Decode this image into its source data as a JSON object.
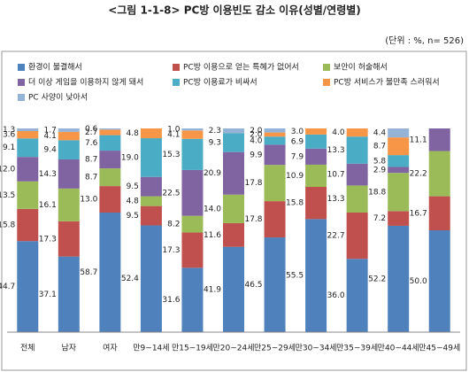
{
  "chart_data": {
    "type": "stacked_bar",
    "title": "<그림 1-1-8> PC방 이용빈도 감소 이유(성별/연령별)",
    "subtitle": "(단위 : %, n= 526)",
    "categories": [
      "전체",
      "남자",
      "여자",
      "만9~14세",
      "만15~19세",
      "만20~24세",
      "만25~29세",
      "만30~34세",
      "만35~39세",
      "만40~44세",
      "만45~49세"
    ],
    "ylim": [
      0,
      100
    ],
    "series": [
      {
        "name": "환경이 불결해서",
        "color": "#4f81bd",
        "values": [
          44.7,
          37.1,
          58.7,
          52.4,
          31.6,
          41.9,
          46.5,
          55.5,
          36.0,
          52.2,
          50.0
        ],
        "value_labels": [
          "44.7",
          "37.1",
          "58.7",
          "52.4",
          "31.6",
          "41.9",
          "46.5",
          "55.5",
          "36.0",
          "52.2",
          "50.0"
        ]
      },
      {
        "name": "PC방 이용으로 얻는 특혜가 없어서",
        "color": "#c0504d",
        "values": [
          15.8,
          17.3,
          13.0,
          9.5,
          17.3,
          11.6,
          17.8,
          15.8,
          22.7,
          7.2,
          16.7
        ],
        "value_labels": [
          "15.8",
          "17.3",
          "13.0",
          "9.5",
          "17.3",
          "11.6",
          "17.8",
          "15.8",
          "22.7",
          "7.2",
          "16.7"
        ]
      },
      {
        "name": "보안이 허술해서",
        "color": "#9bbb59",
        "values": [
          13.5,
          16.1,
          8.7,
          4.8,
          8.2,
          14.0,
          17.8,
          10.9,
          13.3,
          18.8,
          22.2
        ],
        "value_labels": [
          "13.5",
          "16.1",
          "8.7",
          "4.8",
          "8.2",
          "14.0",
          "17.8",
          "10.9",
          "13.3",
          "18.8",
          "22.2"
        ]
      },
      {
        "name": "더 이상 게임을 이용하지 않게 돼서",
        "color": "#8064a2",
        "values": [
          12.0,
          14.3,
          8.7,
          9.5,
          22.5,
          20.9,
          9.9,
          7.9,
          10.7,
          2.9,
          11.1
        ],
        "value_labels": [
          "12.0",
          "14.3",
          "8.7",
          "9.5",
          "22.5",
          "20.9",
          "9.9",
          "7.9",
          "10.7",
          "2.9",
          "11.1"
        ]
      },
      {
        "name": "PC방 이용료가 비싸서",
        "color": "#4bacc6",
        "values": [
          9.1,
          9.4,
          7.6,
          19.0,
          15.3,
          9.3,
          4.0,
          6.9,
          13.3,
          5.8,
          null
        ],
        "value_labels": [
          "9.1",
          "9.4",
          "7.6",
          "19.0",
          "15.3",
          "9.3",
          "4.0",
          "6.9",
          "13.3",
          "5.8",
          null
        ]
      },
      {
        "name": "PC방 서비스가 불만족 스러워서",
        "color": "#f79646",
        "values": [
          3.6,
          4.1,
          2.7,
          4.8,
          4.1,
          null,
          2.0,
          3.0,
          4.0,
          8.7,
          null
        ],
        "value_labels": [
          "3.6",
          "4.1",
          "2.7",
          "4.8",
          "4.1",
          null,
          "2.0",
          "3.0",
          "4.0",
          "8.7",
          null
        ]
      },
      {
        "name": "PC 사양이 낮아서",
        "color": "#95b3d7",
        "values": [
          1.3,
          1.7,
          0.6,
          null,
          1.0,
          2.3,
          2.0,
          null,
          null,
          4.4,
          null
        ],
        "value_labels": [
          "1.3",
          "1.7",
          "0.6",
          null,
          "1.0",
          "2.3",
          "2.0",
          null,
          null,
          "4.4",
          null
        ]
      }
    ]
  }
}
